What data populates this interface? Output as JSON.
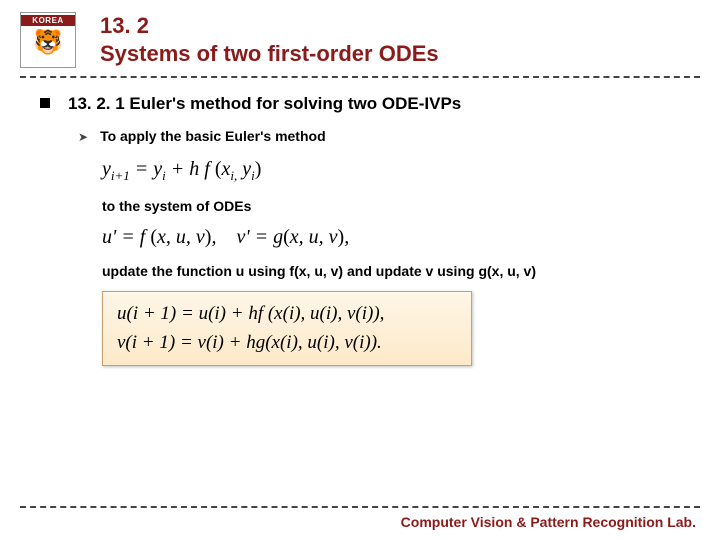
{
  "logo": {
    "text": "KOREA"
  },
  "title": {
    "line1": "13. 2",
    "line2": "Systems of two first-order ODEs"
  },
  "subtitle": "13. 2. 1 Euler's method for solving two ODE-IVPs",
  "bullet1": "To apply the basic Euler's method",
  "formula1_html": "y<span class='sub'>i+1</span> = y<span class='sub'>i</span> + h f <span class='rm'>(</span>x<span class='sub'>i,</span> y<span class='sub'>i</span><span class='rm'>)</span>",
  "line2": "to the system of ODEs",
  "formula2_html": "u' = f <span class='rm'>(</span>x, u, v<span class='rm'>)</span>,&nbsp;&nbsp;&nbsp;&nbsp;v' = g<span class='rm'>(</span>x, u, v<span class='rm'>)</span>,",
  "line3": "update the function u using f(x, u, v) and update v using g(x, u, v)",
  "highlight": {
    "l1": "u(i + 1) = u(i) + hf (x(i), u(i), v(i)),",
    "l2": "v(i + 1) = v(i) + hg(x(i), u(i), v(i))."
  },
  "footer": "Computer Vision & Pattern Recognition Lab.",
  "colors": {
    "accent": "#8b1a1a",
    "highlight_bg_top": "#fff6e8",
    "highlight_bg_bottom": "#fde9c8",
    "highlight_border": "#c9a070"
  }
}
